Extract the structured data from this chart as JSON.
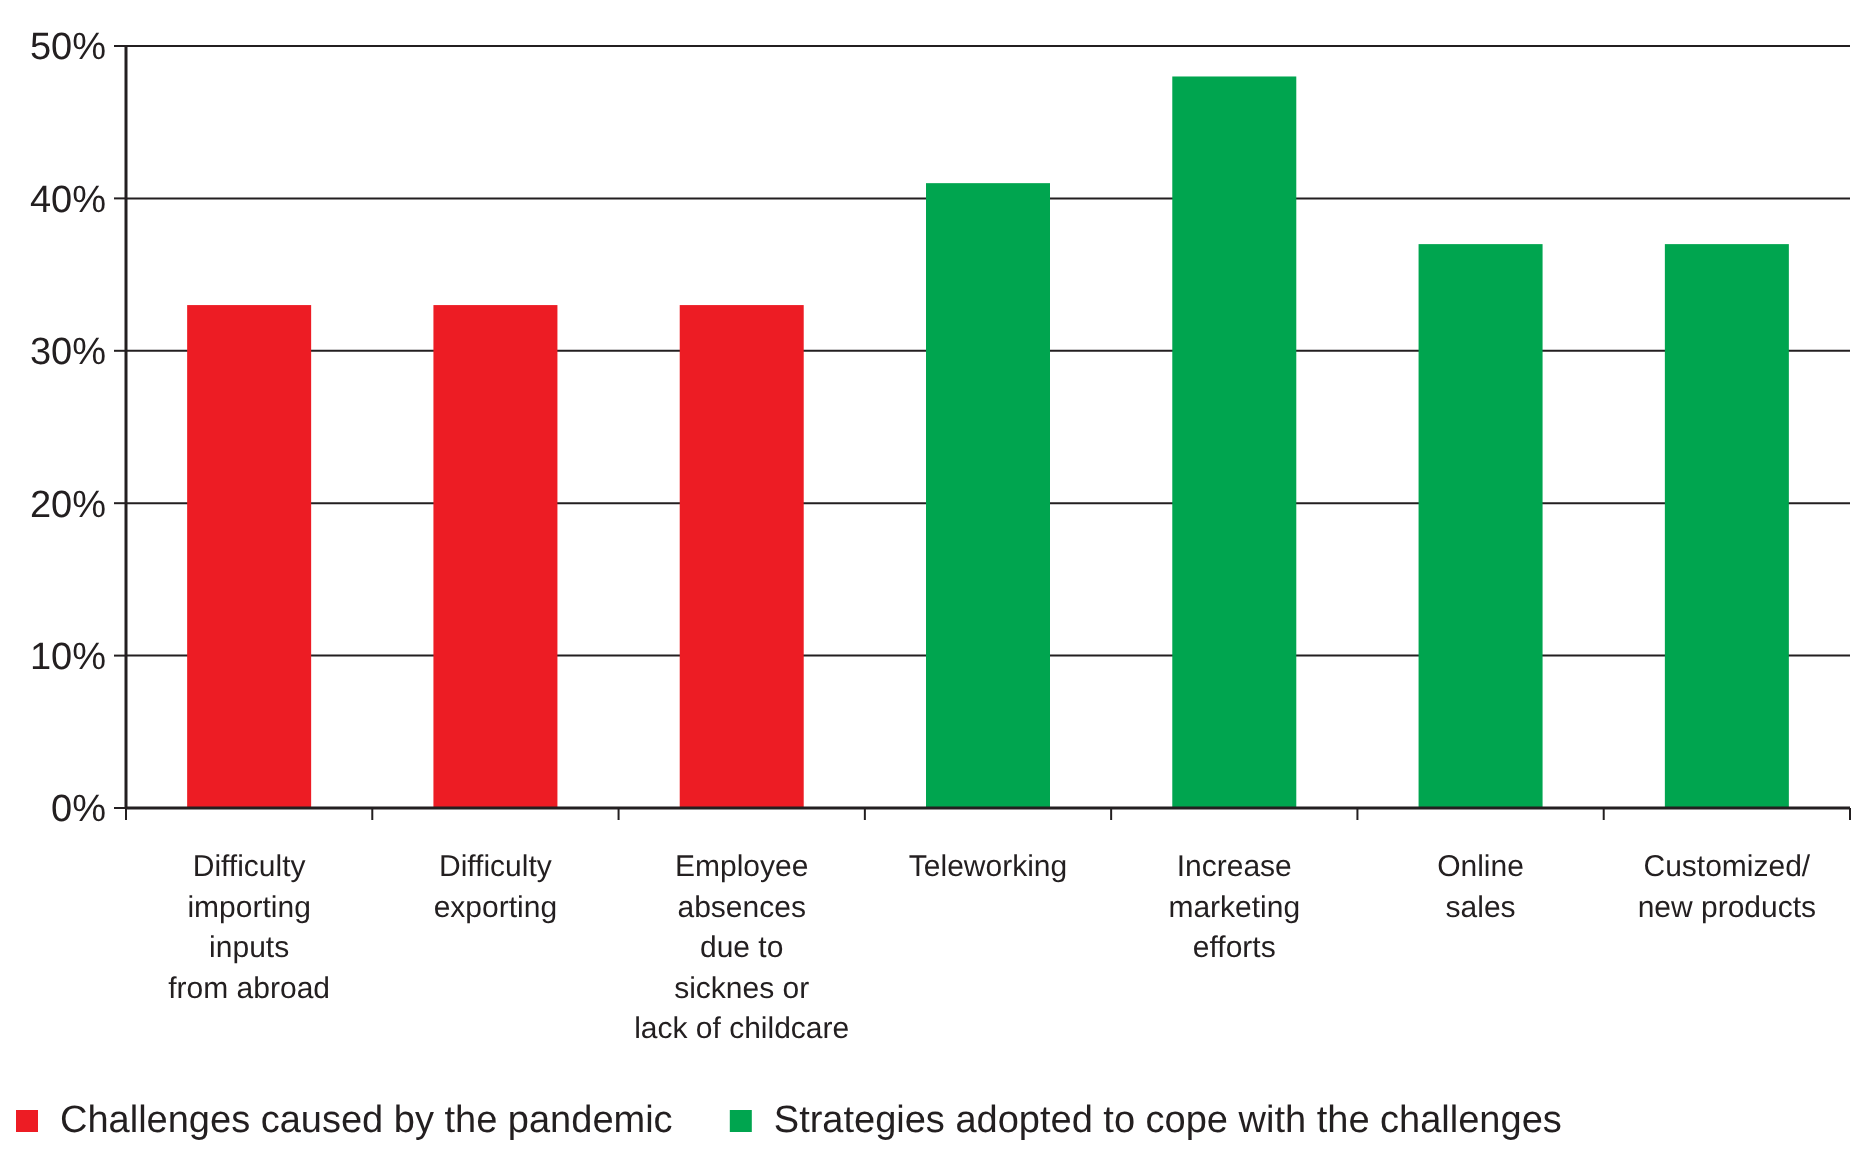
{
  "chart_data": {
    "type": "bar",
    "categories": [
      "Difficulty\nimporting\ninputs\nfrom abroad",
      "Difficulty\nexporting",
      "Employee\nabsences\ndue to\nsicknes or\nlack of childcare",
      "Teleworking",
      "Increase\nmarketing\nefforts",
      "Online\nsales",
      "Customized/\nnew products"
    ],
    "series": [
      {
        "name": "Challenges caused by the pandemic",
        "color": "#ed1c24",
        "values": [
          33,
          33,
          33,
          null,
          null,
          null,
          null
        ]
      },
      {
        "name": "Strategies adopted to cope with the challenges",
        "color": "#00a54f",
        "values": [
          null,
          null,
          null,
          41,
          48,
          37,
          37
        ]
      }
    ],
    "ylim": [
      0,
      50
    ],
    "yticks": [
      {
        "value": 0,
        "label": "0%"
      },
      {
        "value": 10,
        "label": "10%"
      },
      {
        "value": 20,
        "label": "20%"
      },
      {
        "value": 30,
        "label": "30%"
      },
      {
        "value": 40,
        "label": "40%"
      },
      {
        "value": 50,
        "label": "50%"
      }
    ],
    "grid": "y",
    "legend": "bottom left"
  }
}
